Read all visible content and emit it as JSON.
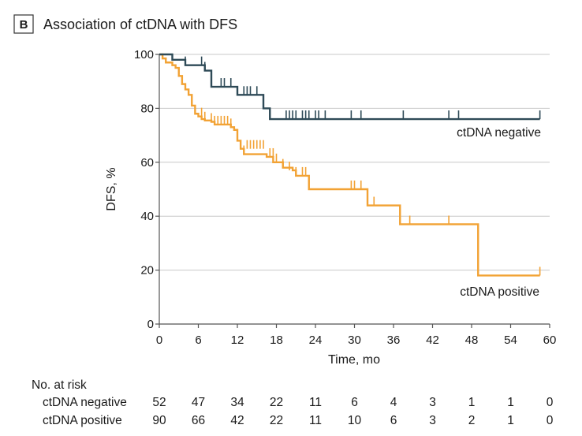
{
  "panel": {
    "letter": "B",
    "title": "Association of ctDNA with DFS"
  },
  "colors": {
    "negative": "#2e4a57",
    "positive": "#f2a234",
    "grid": "#c8c8c8",
    "axis": "#555555"
  },
  "chart_data": {
    "type": "line",
    "title": "Association of ctDNA with DFS",
    "xlabel": "Time, mo",
    "ylabel": "DFS, %",
    "xlim": [
      0,
      60
    ],
    "ylim": [
      0,
      100
    ],
    "xticks": [
      0,
      6,
      12,
      18,
      24,
      30,
      36,
      42,
      48,
      54,
      60
    ],
    "yticks": [
      0,
      20,
      40,
      60,
      80,
      100
    ],
    "grid": "horizontal",
    "series": [
      {
        "name": "ctDNA negative",
        "key": "negative",
        "steps": [
          [
            0,
            100
          ],
          [
            2,
            98
          ],
          [
            4,
            96
          ],
          [
            7,
            94
          ],
          [
            8,
            88
          ],
          [
            12,
            85
          ],
          [
            16,
            80
          ],
          [
            17,
            76
          ],
          [
            58.5,
            76
          ]
        ],
        "censored": [
          [
            4,
            96
          ],
          [
            6.5,
            96
          ],
          [
            7,
            94
          ],
          [
            9.5,
            88
          ],
          [
            10,
            88
          ],
          [
            11,
            88
          ],
          [
            13,
            85
          ],
          [
            13.5,
            85
          ],
          [
            14,
            85
          ],
          [
            15,
            85
          ],
          [
            19.5,
            76
          ],
          [
            20,
            76
          ],
          [
            20.5,
            76
          ],
          [
            21,
            76
          ],
          [
            22,
            76
          ],
          [
            22.5,
            76
          ],
          [
            23,
            76
          ],
          [
            24,
            76
          ],
          [
            24.5,
            76
          ],
          [
            25.5,
            76
          ],
          [
            29.5,
            76
          ],
          [
            31,
            76
          ],
          [
            37.5,
            76
          ],
          [
            44.5,
            76
          ],
          [
            46,
            76
          ],
          [
            58.5,
            76
          ]
        ]
      },
      {
        "name": "ctDNA positive",
        "key": "positive",
        "steps": [
          [
            0,
            100
          ],
          [
            0.5,
            98.5
          ],
          [
            1,
            97
          ],
          [
            2,
            96
          ],
          [
            2.5,
            95
          ],
          [
            3,
            92
          ],
          [
            3.5,
            89
          ],
          [
            4,
            87
          ],
          [
            4.5,
            85
          ],
          [
            5,
            81
          ],
          [
            5.5,
            78
          ],
          [
            6,
            77
          ],
          [
            6.5,
            76
          ],
          [
            7,
            75.5
          ],
          [
            8,
            75
          ],
          [
            8.5,
            74
          ],
          [
            11,
            73
          ],
          [
            11.5,
            72
          ],
          [
            12,
            68
          ],
          [
            12.5,
            65
          ],
          [
            13,
            63
          ],
          [
            16.5,
            62
          ],
          [
            17.5,
            60
          ],
          [
            19,
            58
          ],
          [
            20.5,
            57
          ],
          [
            21,
            55
          ],
          [
            23,
            50
          ],
          [
            32,
            44
          ],
          [
            37,
            37
          ],
          [
            49,
            18
          ],
          [
            58.5,
            18
          ]
        ],
        "censored": [
          [
            6.5,
            77
          ],
          [
            7,
            75.5
          ],
          [
            8,
            75
          ],
          [
            8.5,
            74
          ],
          [
            9,
            74
          ],
          [
            9.5,
            74
          ],
          [
            10,
            74
          ],
          [
            10.5,
            74
          ],
          [
            11,
            73
          ],
          [
            12,
            68
          ],
          [
            13,
            63
          ],
          [
            13.5,
            65
          ],
          [
            14,
            65
          ],
          [
            14.5,
            65
          ],
          [
            15,
            65
          ],
          [
            15.5,
            65
          ],
          [
            16,
            65
          ],
          [
            17,
            62
          ],
          [
            17.5,
            62
          ],
          [
            18,
            60
          ],
          [
            19,
            58
          ],
          [
            20,
            57
          ],
          [
            21,
            55
          ],
          [
            22,
            55
          ],
          [
            22.5,
            55
          ],
          [
            29.5,
            50
          ],
          [
            30,
            50
          ],
          [
            31,
            50
          ],
          [
            33,
            44
          ],
          [
            38.5,
            37
          ],
          [
            44.5,
            37
          ],
          [
            58.5,
            18
          ]
        ]
      }
    ],
    "annotations": {
      "negative_label": "ctDNA negative",
      "positive_label": "ctDNA positive"
    }
  },
  "risk_table": {
    "heading": "No. at risk",
    "rows": [
      {
        "label": "ctDNA negative",
        "values": [
          "52",
          "47",
          "34",
          "22",
          "11",
          "6",
          "4",
          "3",
          "1",
          "1",
          "0"
        ]
      },
      {
        "label": "ctDNA positive",
        "values": [
          "90",
          "66",
          "42",
          "22",
          "11",
          "10",
          "6",
          "3",
          "2",
          "1",
          "0"
        ]
      }
    ]
  }
}
